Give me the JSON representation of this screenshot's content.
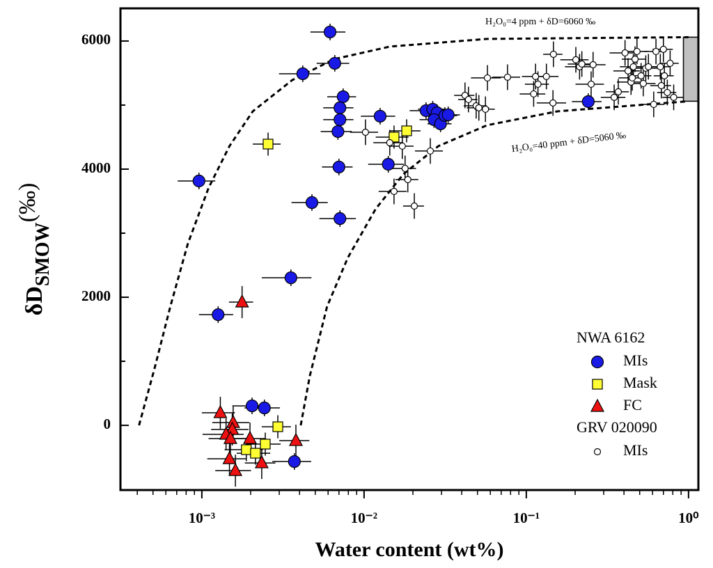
{
  "chart_data": {
    "type": "scatter",
    "xlabel": "Water content (wt%)",
    "ylabel": {
      "main": "δD",
      "sub": "SMOW",
      "sup": "(‰)"
    },
    "xscale": "log",
    "xlim": [
      0.000315,
      1.15
    ],
    "xticks": [
      {
        "value": 0.001,
        "label": "10⁻³"
      },
      {
        "value": 0.01,
        "label": "10⁻²"
      },
      {
        "value": 0.1,
        "label": "10⁻¹"
      },
      {
        "value": 1,
        "label": "10⁰"
      }
    ],
    "ylim": [
      -1010,
      6510
    ],
    "yticks": [
      0,
      2000,
      4000,
      6000
    ],
    "groups": [
      {
        "name": "NWA 6162",
        "series": [
          {
            "name": "MIs",
            "marker": "circle",
            "color": "#1a1ae6",
            "x": [
              0.00617,
              0.0066,
              0.00419,
              0.00743,
              0.0071,
              0.0071,
              0.0069,
              0.007,
              0.0071,
              0.00477,
              0.00096,
              0.00354,
              0.00126,
              0.01256,
              0.0141,
              0.0241,
              0.0265,
              0.0282,
              0.027,
              0.0296,
              0.0315,
              0.033,
              0.241,
              0.00204,
              0.00243,
              0.00372
            ],
            "xerr": [
              0.0015,
              0.0015,
              0.0012,
              0.0015,
              0.0015,
              0.0015,
              0.0015,
              0.0015,
              0.0018,
              0.0012,
              0.00025,
              0.0012,
              0.0003,
              0.003,
              0.0035,
              0.005,
              0.005,
              0.005,
              0.005,
              0.005,
              0.006,
              0.006,
              0.05,
              0.0005,
              0.0006,
              0.001
            ],
            "values": [
              6141,
              5652,
              5489,
              5130,
              4957,
              4772,
              4587,
              4033,
              3228,
              3478,
              3815,
              2304,
              1728,
              4826,
              4076,
              4913,
              4935,
              4880,
              4772,
              4707,
              4837,
              4848,
              5054,
              304,
              272,
              -565
            ],
            "yerr": 130
          },
          {
            "name": "Mask",
            "marker": "square",
            "color": "#ffff33",
            "x": [
              0.00256,
              0.0153,
              0.0183,
              0.00294,
              0.00246,
              0.00188,
              0.00214
            ],
            "xerr": [
              0.0005,
              0.0035,
              0.004,
              0.0006,
              0.0006,
              0.0005,
              0.0005
            ],
            "values": [
              4391,
              4500,
              4598,
              -22,
              -293,
              -380,
              -435
            ],
            "yerr": 180
          },
          {
            "name": "FC",
            "marker": "triangle",
            "color": "#ee1111",
            "x": [
              0.00177,
              0.0013,
              0.00156,
              0.00154,
              0.00141,
              0.0015,
              0.00198,
              0.00148,
              0.00161,
              0.00234,
              0.0038
            ],
            "xerr": [
              0.0003,
              0.0003,
              0.0004,
              0.0004,
              0.0004,
              0.0004,
              0.0005,
              0.0004,
              0.0004,
              0.0005,
              0.0008
            ],
            "values": [
              1924,
              196,
              43,
              -65,
              -141,
              -207,
              -207,
              -522,
              -707,
              -587,
              -239
            ],
            "yerr": 250
          }
        ]
      },
      {
        "name": "GRV 020090",
        "series": [
          {
            "name": "MIs",
            "marker": "small-circle",
            "color": "#ffffff",
            "x": [
              0.0102,
              0.0144,
              0.0153,
              0.0172,
              0.0179,
              0.0186,
              0.0204,
              0.0256,
              0.0419,
              0.044,
              0.0491,
              0.051,
              0.056,
              0.0576,
              0.0766,
              0.111,
              0.114,
              0.118,
              0.133,
              0.147,
              0.146,
              0.202,
              0.213,
              0.22,
              0.251,
              0.258,
              0.348,
              0.369,
              0.406,
              0.424,
              0.442,
              0.457,
              0.468,
              0.481,
              0.526,
              0.545,
              0.566,
              0.61,
              0.63,
              0.67,
              0.68,
              0.7,
              0.71,
              0.74,
              0.77,
              0.81,
              0.45,
              0.51
            ],
            "xerr": [
              0.002,
              0.003,
              0.003,
              0.003,
              0.003,
              0.003,
              0.003,
              0.005,
              0.006,
              0.006,
              0.008,
              0.008,
              0.008,
              0.012,
              0.015,
              0.02,
              0.02,
              0.02,
              0.025,
              0.02,
              0.03,
              0.04,
              0.04,
              0.04,
              0.05,
              0.05,
              0.06,
              0.06,
              0.08,
              0.08,
              0.08,
              0.08,
              0.08,
              0.08,
              0.1,
              0.1,
              0.1,
              0.1,
              0.1,
              0.1,
              0.1,
              0.1,
              0.1,
              0.1,
              0.1,
              0.12,
              0.08,
              0.08
            ],
            "values": [
              4576,
              4413,
              3652,
              4359,
              4011,
              3837,
              3424,
              4283,
              5152,
              5087,
              4989,
              4957,
              4935,
              5424,
              5435,
              5174,
              5446,
              5326,
              5446,
              5793,
              5033,
              5707,
              5598,
              5641,
              5326,
              5630,
              5120,
              5207,
              5815,
              5533,
              5359,
              5598,
              5717,
              5837,
              5337,
              5576,
              5598,
              5011,
              5837,
              5598,
              5304,
              5870,
              5457,
              5196,
              5652,
              5120,
              5424,
              5457
            ],
            "yerr": 200
          }
        ]
      }
    ],
    "curves": [
      {
        "x": [
          0.00041,
          0.00051,
          0.00064,
          0.00082,
          0.0011,
          0.00148,
          0.00206,
          0.00361,
          0.00654,
          0.0144,
          0.0572,
          1.0
        ],
        "values": [
          0,
          880,
          1859,
          2837,
          3707,
          4359,
          4902,
          5391,
          5717,
          5913,
          6033,
          6060
        ]
      },
      {
        "x": [
          0.00407,
          0.00463,
          0.00592,
          0.00795,
          0.0118,
          0.0175,
          0.0287,
          0.0572,
          0.155,
          1.0
        ],
        "values": [
          0,
          772,
          1859,
          2620,
          3380,
          3924,
          4359,
          4685,
          4902,
          5060
        ]
      }
    ],
    "band": {
      "x0": 0.93,
      "values": [
        5060,
        6060
      ],
      "color": "#c0c0c0"
    },
    "annotations": [
      "H₂O₀=4 ppm + δD=6060 ‰",
      "H₂O₀=40 ppm + δD=5060 ‰"
    ]
  }
}
